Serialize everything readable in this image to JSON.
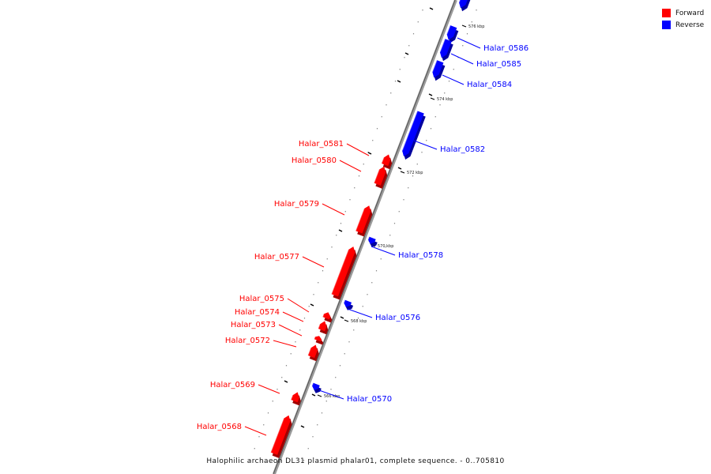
{
  "legend": {
    "forward_label": "Forward",
    "reverse_label": "Reverse",
    "forward_color": "#ff0000",
    "reverse_color": "#0000ff"
  },
  "caption": "Halophilic archaeon DL31 plasmid phalar01, complete sequence. - 0..705810",
  "scale_labels": [
    "576 kbp",
    "574 kbp",
    "572 kbp",
    "570 kbp",
    "568 kbp",
    "566 kbp"
  ],
  "genes": [
    {
      "name": "",
      "strand": "reverse"
    },
    {
      "name": "Halar_0586",
      "strand": "reverse"
    },
    {
      "name": "Halar_0585",
      "strand": "reverse"
    },
    {
      "name": "Halar_0584",
      "strand": "reverse"
    },
    {
      "name": "Halar_0582",
      "strand": "reverse"
    },
    {
      "name": "Halar_0581",
      "strand": "forward"
    },
    {
      "name": "Halar_0580",
      "strand": "forward"
    },
    {
      "name": "Halar_0579",
      "strand": "forward"
    },
    {
      "name": "Halar_0578",
      "strand": "reverse"
    },
    {
      "name": "Halar_0577",
      "strand": "forward"
    },
    {
      "name": "Halar_0576",
      "strand": "reverse"
    },
    {
      "name": "Halar_0575",
      "strand": "forward"
    },
    {
      "name": "Halar_0574",
      "strand": "forward"
    },
    {
      "name": "Halar_0573",
      "strand": "forward"
    },
    {
      "name": "Halar_0572",
      "strand": "forward"
    },
    {
      "name": "Halar_0570",
      "strand": "reverse"
    },
    {
      "name": "Halar_0569",
      "strand": "forward"
    },
    {
      "name": "Halar_0568",
      "strand": "forward"
    }
  ]
}
